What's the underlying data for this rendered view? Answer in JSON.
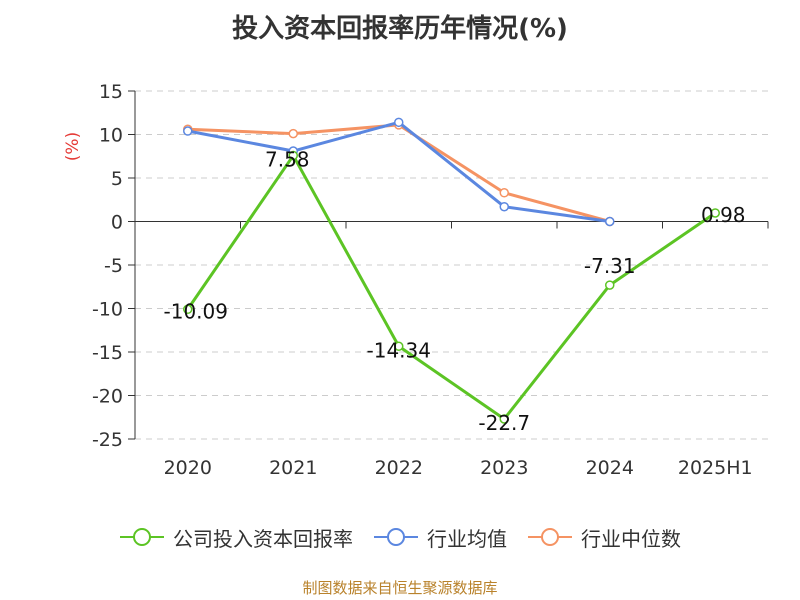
{
  "title": "投入资本回报率历年情况(%)",
  "source": "制图数据来自恒生聚源数据库",
  "chart_data": {
    "type": "line",
    "title": "投入资本回报率历年情况(%)",
    "ylabel": "(%)",
    "categories": [
      "2020",
      "2021",
      "2022",
      "2023",
      "2024",
      "2025H1"
    ],
    "ylim": [
      -25,
      15
    ],
    "yticks": [
      15,
      10,
      5,
      0,
      -5,
      -10,
      -15,
      -20,
      -25
    ],
    "grid": true,
    "legend_position": "bottom",
    "series": [
      {
        "name": "公司投入资本回报率",
        "color": "#5cc424",
        "values": [
          -10.09,
          7.58,
          -14.34,
          -22.7,
          -7.31,
          0.98
        ],
        "labels": [
          "-10.09",
          "7.58",
          "-14.34",
          "-22.7",
          "-7.31",
          "0.98"
        ]
      },
      {
        "name": "行业均值",
        "color": "#5b87e0",
        "values": [
          10.4,
          8.1,
          11.4,
          1.7,
          0.0,
          null
        ]
      },
      {
        "name": "行业中位数",
        "color": "#f59363",
        "values": [
          10.6,
          10.1,
          11.1,
          3.3,
          0.0,
          null
        ]
      }
    ]
  }
}
